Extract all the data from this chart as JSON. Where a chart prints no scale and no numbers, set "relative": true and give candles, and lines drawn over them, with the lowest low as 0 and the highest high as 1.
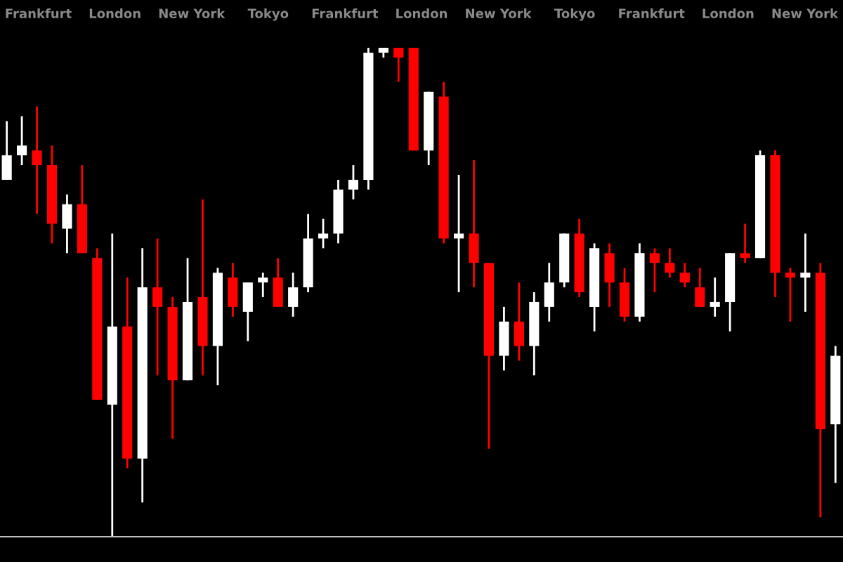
{
  "chart_data": {
    "type": "candlestick",
    "relative": true,
    "grid": false,
    "legend": false,
    "categories": [
      null,
      null,
      null,
      null,
      null,
      null,
      null,
      null,
      null,
      null,
      null,
      null,
      null,
      null,
      null,
      null,
      null,
      null,
      null,
      null,
      null,
      null,
      null,
      null,
      null,
      null,
      null,
      null,
      null,
      null,
      null,
      null,
      null,
      null,
      null,
      null,
      null,
      null,
      null,
      null,
      null,
      null,
      null,
      null,
      null,
      null,
      null,
      null,
      null,
      null,
      null,
      null,
      null,
      null,
      null,
      null
    ],
    "ohlc": [
      [
        0.73,
        0.85,
        0.73,
        0.78
      ],
      [
        0.78,
        0.86,
        0.76,
        0.8
      ],
      [
        0.79,
        0.88,
        0.66,
        0.76
      ],
      [
        0.76,
        0.8,
        0.6,
        0.64
      ],
      [
        0.63,
        0.7,
        0.58,
        0.68
      ],
      [
        0.68,
        0.76,
        0.58,
        0.58
      ],
      [
        0.57,
        0.59,
        0.28,
        0.28
      ],
      [
        0.27,
        0.62,
        0,
        0.43
      ],
      [
        0.43,
        0.53,
        0.14,
        0.16
      ],
      [
        0.16,
        0.59,
        0.07,
        0.51
      ],
      [
        0.51,
        0.61,
        0.33,
        0.47
      ],
      [
        0.47,
        0.49,
        0.2,
        0.32
      ],
      [
        0.32,
        0.57,
        0.32,
        0.48
      ],
      [
        0.49,
        0.69,
        0.33,
        0.39
      ],
      [
        0.39,
        0.55,
        0.31,
        0.54
      ],
      [
        0.53,
        0.56,
        0.45,
        0.47
      ],
      [
        0.46,
        0.52,
        0.4,
        0.52
      ],
      [
        0.52,
        0.54,
        0.49,
        0.53
      ],
      [
        0.53,
        0.57,
        0.47,
        0.47
      ],
      [
        0.47,
        0.54,
        0.45,
        0.51
      ],
      [
        0.51,
        0.66,
        0.5,
        0.61
      ],
      [
        0.61,
        0.65,
        0.59,
        0.62
      ],
      [
        0.62,
        0.73,
        0.6,
        0.71
      ],
      [
        0.71,
        0.76,
        0.69,
        0.73
      ],
      [
        0.73,
        1,
        0.71,
        0.99
      ],
      [
        0.99,
        1,
        0.98,
        1
      ],
      [
        1,
        1,
        0.93,
        0.98
      ],
      [
        1,
        1,
        0.79,
        0.79
      ],
      [
        0.79,
        0.91,
        0.76,
        0.91
      ],
      [
        0.9,
        0.93,
        0.6,
        0.61
      ],
      [
        0.61,
        0.74,
        0.5,
        0.62
      ],
      [
        0.62,
        0.77,
        0.51,
        0.56
      ],
      [
        0.56,
        0.56,
        0.18,
        0.37
      ],
      [
        0.37,
        0.47,
        0.34,
        0.44
      ],
      [
        0.44,
        0.52,
        0.36,
        0.39
      ],
      [
        0.39,
        0.5,
        0.33,
        0.48
      ],
      [
        0.47,
        0.56,
        0.44,
        0.52
      ],
      [
        0.52,
        0.62,
        0.51,
        0.62
      ],
      [
        0.62,
        0.65,
        0.49,
        0.5
      ],
      [
        0.47,
        0.6,
        0.42,
        0.59
      ],
      [
        0.58,
        0.6,
        0.47,
        0.52
      ],
      [
        0.52,
        0.55,
        0.44,
        0.45
      ],
      [
        0.45,
        0.6,
        0.44,
        0.58
      ],
      [
        0.58,
        0.59,
        0.5,
        0.56
      ],
      [
        0.56,
        0.59,
        0.53,
        0.54
      ],
      [
        0.54,
        0.56,
        0.51,
        0.52
      ],
      [
        0.51,
        0.55,
        0.47,
        0.47
      ],
      [
        0.47,
        0.53,
        0.45,
        0.48
      ],
      [
        0.48,
        0.58,
        0.42,
        0.58
      ],
      [
        0.58,
        0.64,
        0.56,
        0.57
      ],
      [
        0.57,
        0.79,
        0.57,
        0.78
      ],
      [
        0.78,
        0.79,
        0.49,
        0.54
      ],
      [
        0.54,
        0.55,
        0.44,
        0.53
      ],
      [
        0.53,
        0.62,
        0.46,
        0.54
      ],
      [
        0.54,
        0.56,
        0.04,
        0.22
      ],
      [
        0.23,
        0.39,
        0.11,
        0.37
      ]
    ],
    "colors": [
      "#ffffff",
      "#ffffff",
      "#ff0000",
      "#ff0000",
      "#ffffff",
      "#ff0000",
      "#ff0000",
      "#ffffff",
      "#ff0000",
      "#ffffff",
      "#ff0000",
      "#ff0000",
      "#ffffff",
      "#ff0000",
      "#ffffff",
      "#ff0000",
      "#ffffff",
      "#ffffff",
      "#ff0000",
      "#ffffff",
      "#ffffff",
      "#ffffff",
      "#ffffff",
      "#ffffff",
      "#ffffff",
      "#ffffff",
      "#ff0000",
      "#ff0000",
      "#ffffff",
      "#ff0000",
      "#ffffff",
      "#ff0000",
      "#ff0000",
      "#ffffff",
      "#ff0000",
      "#ffffff",
      "#ffffff",
      "#ffffff",
      "#ff0000",
      "#ffffff",
      "#ff0000",
      "#ff0000",
      "#ffffff",
      "#ff0000",
      "#ff0000",
      "#ff0000",
      "#ff0000",
      "#ffffff",
      "#ffffff",
      "#ff0000",
      "#ffffff",
      "#ff0000",
      "#ff0000",
      "#ffffff",
      "#ff0000",
      "#ffffff"
    ],
    "annotations": [
      "Frankfurt",
      "London",
      "New York",
      "Tokyo",
      "Frankfurt",
      "London",
      "New York",
      "Tokyo",
      "Frankfurt",
      "London",
      "New York"
    ]
  }
}
